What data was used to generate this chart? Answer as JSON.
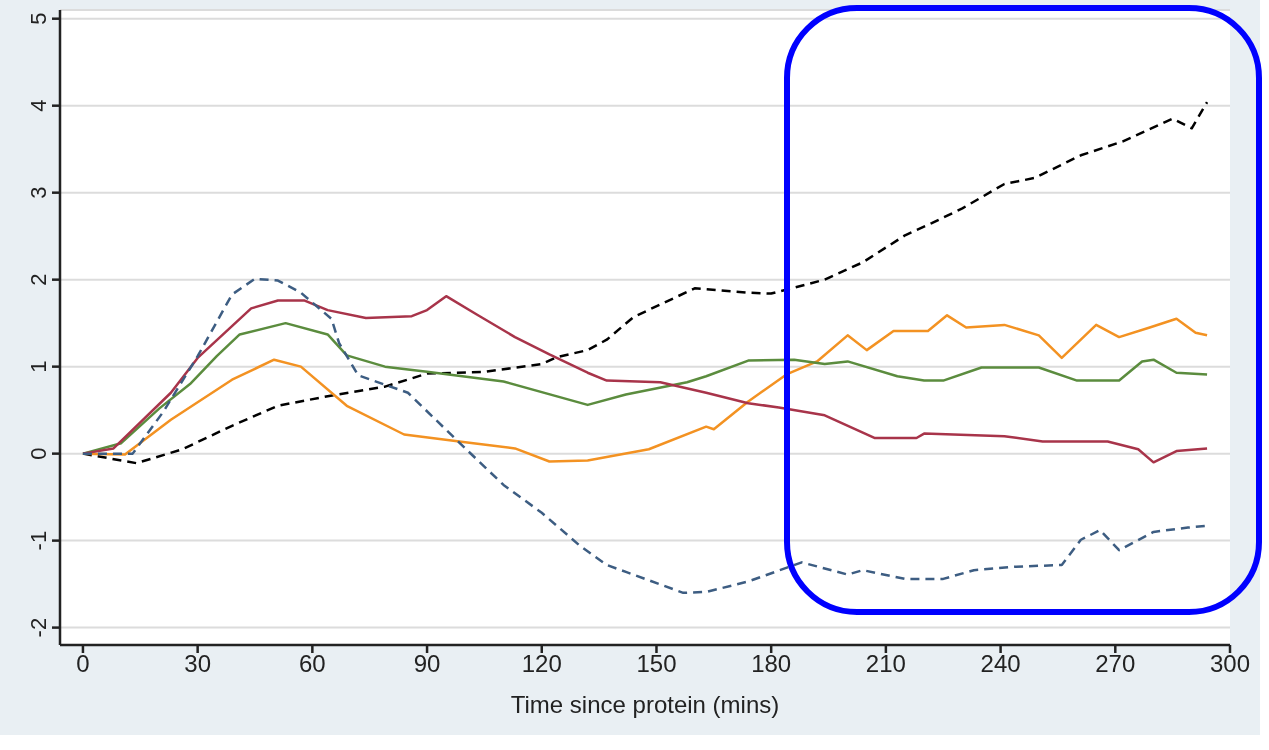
{
  "chart_data": {
    "type": "line",
    "xlabel": "Time since protein (mins)",
    "xlim": [
      -6,
      300
    ],
    "xticks": [
      0,
      30,
      60,
      90,
      120,
      150,
      180,
      210,
      240,
      270,
      300
    ],
    "ylim": [
      -2.2,
      5.1
    ],
    "yticks": [
      -2,
      -1,
      0,
      1,
      2,
      3,
      4,
      5
    ],
    "grid": "y",
    "series": [
      {
        "color": "#000000",
        "line_style": "dashed",
        "x": [
          0,
          14,
          26,
          39,
          51,
          64,
          79,
          90,
          105,
          120,
          124,
          132,
          137,
          144,
          160,
          174,
          180,
          194,
          204,
          215,
          222,
          230,
          241,
          249,
          261,
          272,
          285,
          290,
          294
        ],
        "values": [
          0,
          -0.11,
          0.05,
          0.32,
          0.55,
          0.66,
          0.77,
          0.92,
          0.94,
          1.03,
          1.11,
          1.19,
          1.31,
          1.57,
          1.9,
          1.85,
          1.84,
          2.0,
          2.2,
          2.51,
          2.65,
          2.82,
          3.1,
          3.17,
          3.43,
          3.59,
          3.85,
          3.74,
          4.04
        ]
      },
      {
        "color": "#f39222",
        "line_style": "solid",
        "x": [
          0,
          11,
          23,
          39,
          50,
          57,
          69,
          84,
          100,
          113,
          122,
          132,
          148,
          163,
          165,
          174,
          184,
          192,
          200,
          205,
          212,
          221,
          226,
          231,
          241,
          250,
          256,
          265,
          271,
          279,
          286,
          291,
          294
        ],
        "values": [
          0,
          -0.01,
          0.39,
          0.85,
          1.08,
          1.0,
          0.55,
          0.22,
          0.13,
          0.06,
          -0.09,
          -0.08,
          0.05,
          0.31,
          0.28,
          0.6,
          0.91,
          1.06,
          1.36,
          1.19,
          1.41,
          1.41,
          1.59,
          1.45,
          1.48,
          1.36,
          1.1,
          1.48,
          1.34,
          1.45,
          1.55,
          1.39,
          1.36
        ]
      },
      {
        "color": "#5b8c3e",
        "line_style": "solid",
        "x": [
          0,
          10,
          20,
          28,
          35,
          41,
          53,
          64,
          69,
          79,
          90,
          110,
          132,
          142,
          158,
          163,
          174,
          186,
          194,
          200,
          213,
          220,
          225,
          235,
          250,
          260,
          271,
          277,
          280,
          286,
          294
        ],
        "values": [
          0,
          0.12,
          0.52,
          0.8,
          1.12,
          1.37,
          1.5,
          1.37,
          1.13,
          1.0,
          0.94,
          0.83,
          0.56,
          0.68,
          0.82,
          0.89,
          1.07,
          1.08,
          1.03,
          1.06,
          0.89,
          0.84,
          0.84,
          0.99,
          0.99,
          0.84,
          0.84,
          1.06,
          1.08,
          0.93,
          0.91
        ]
      },
      {
        "color": "#a8344a",
        "line_style": "solid",
        "x": [
          0,
          8,
          23,
          30,
          44,
          51,
          58,
          64,
          74,
          86,
          90,
          95,
          103,
          113,
          122,
          132,
          137,
          151,
          163,
          174,
          182,
          194,
          207,
          218,
          220,
          241,
          251,
          268,
          276,
          280,
          286,
          294
        ],
        "values": [
          0,
          0.06,
          0.7,
          1.1,
          1.67,
          1.76,
          1.76,
          1.65,
          1.56,
          1.58,
          1.65,
          1.81,
          1.6,
          1.34,
          1.14,
          0.93,
          0.84,
          0.82,
          0.7,
          0.58,
          0.53,
          0.44,
          0.18,
          0.18,
          0.23,
          0.2,
          0.14,
          0.14,
          0.05,
          -0.1,
          0.03,
          0.06
        ]
      },
      {
        "color": "#3d5d82",
        "line_style": "dashed",
        "x": [
          0,
          13,
          21,
          30,
          39,
          45,
          51,
          57,
          65,
          67,
          72,
          85,
          100,
          110,
          120,
          130,
          137,
          142,
          157,
          163,
          174,
          188,
          194,
          200,
          204,
          215,
          225,
          233,
          244,
          256,
          261,
          266,
          271,
          280,
          289,
          294
        ],
        "values": [
          0,
          0,
          0.48,
          1.12,
          1.83,
          2.01,
          1.99,
          1.85,
          1.55,
          1.27,
          0.9,
          0.7,
          0.06,
          -0.36,
          -0.68,
          -1.06,
          -1.28,
          -1.36,
          -1.6,
          -1.59,
          -1.47,
          -1.25,
          -1.32,
          -1.39,
          -1.34,
          -1.44,
          -1.44,
          -1.34,
          -1.3,
          -1.28,
          -0.99,
          -0.88,
          -1.11,
          -0.9,
          -0.85,
          -0.83
        ]
      }
    ]
  }
}
